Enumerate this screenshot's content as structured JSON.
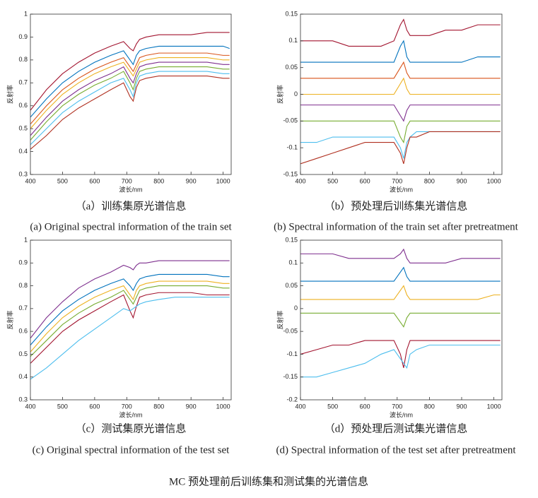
{
  "chart_data": [
    {
      "type": "line",
      "caption_cn": "（a）训练集原光谱信息",
      "caption_en": "(a) Original spectral information of the train set",
      "x_label": "波长/nm",
      "y_label": "反射率",
      "x": [
        400,
        450,
        500,
        550,
        600,
        650,
        690,
        710,
        720,
        730,
        740,
        760,
        800,
        850,
        900,
        950,
        1000,
        1020
      ],
      "xlim": [
        400,
        1025
      ],
      "xticks": [
        400,
        500,
        600,
        700,
        800,
        900,
        1000
      ],
      "ylim": [
        0.3,
        1
      ],
      "yticks": [
        0.3,
        0.4,
        0.5,
        0.6,
        0.7,
        0.8,
        0.9,
        1
      ],
      "series": [
        {
          "color": "#a2142f",
          "values": [
            0.58,
            0.67,
            0.74,
            0.79,
            0.83,
            0.86,
            0.88,
            0.85,
            0.84,
            0.87,
            0.89,
            0.9,
            0.91,
            0.91,
            0.91,
            0.92,
            0.92,
            0.92
          ]
        },
        {
          "color": "#0072bd",
          "values": [
            0.55,
            0.63,
            0.7,
            0.75,
            0.79,
            0.82,
            0.84,
            0.8,
            0.78,
            0.82,
            0.84,
            0.85,
            0.86,
            0.86,
            0.86,
            0.86,
            0.86,
            0.85
          ]
        },
        {
          "color": "#d95319",
          "values": [
            0.52,
            0.6,
            0.67,
            0.72,
            0.76,
            0.79,
            0.81,
            0.77,
            0.75,
            0.78,
            0.81,
            0.82,
            0.83,
            0.83,
            0.83,
            0.83,
            0.82,
            0.82
          ]
        },
        {
          "color": "#edb120",
          "values": [
            0.5,
            0.58,
            0.65,
            0.7,
            0.74,
            0.77,
            0.79,
            0.75,
            0.73,
            0.76,
            0.79,
            0.8,
            0.81,
            0.81,
            0.81,
            0.81,
            0.8,
            0.8
          ]
        },
        {
          "color": "#7e2f8e",
          "values": [
            0.47,
            0.55,
            0.62,
            0.67,
            0.71,
            0.74,
            0.77,
            0.72,
            0.7,
            0.74,
            0.77,
            0.78,
            0.79,
            0.79,
            0.79,
            0.79,
            0.78,
            0.78
          ]
        },
        {
          "color": "#77ac30",
          "values": [
            0.45,
            0.53,
            0.6,
            0.65,
            0.69,
            0.72,
            0.75,
            0.7,
            0.67,
            0.72,
            0.75,
            0.76,
            0.77,
            0.77,
            0.77,
            0.77,
            0.76,
            0.76
          ]
        },
        {
          "color": "#4dbeee",
          "values": [
            0.43,
            0.5,
            0.57,
            0.62,
            0.66,
            0.7,
            0.72,
            0.67,
            0.64,
            0.7,
            0.73,
            0.74,
            0.75,
            0.75,
            0.75,
            0.75,
            0.74,
            0.74
          ]
        },
        {
          "color": "#b03020",
          "values": [
            0.41,
            0.47,
            0.54,
            0.59,
            0.63,
            0.67,
            0.7,
            0.64,
            0.62,
            0.68,
            0.71,
            0.72,
            0.73,
            0.73,
            0.73,
            0.73,
            0.72,
            0.72
          ]
        }
      ]
    },
    {
      "type": "line",
      "caption_cn": "（b）预处理后训练集光谱信息",
      "caption_en": "(b) Spectral information of the train set after pretreatment",
      "x_label": "波长/nm",
      "y_label": "反射率",
      "x": [
        400,
        450,
        500,
        550,
        600,
        650,
        690,
        710,
        720,
        730,
        740,
        760,
        800,
        850,
        900,
        950,
        1000,
        1020
      ],
      "xlim": [
        400,
        1025
      ],
      "xticks": [
        400,
        500,
        600,
        700,
        800,
        900,
        1000
      ],
      "ylim": [
        -0.15,
        0.15
      ],
      "yticks": [
        -0.15,
        -0.1,
        -0.05,
        0,
        0.05,
        0.1,
        0.15
      ],
      "series": [
        {
          "color": "#a2142f",
          "values": [
            0.1,
            0.1,
            0.1,
            0.09,
            0.09,
            0.09,
            0.1,
            0.13,
            0.14,
            0.12,
            0.11,
            0.11,
            0.11,
            0.12,
            0.12,
            0.13,
            0.13,
            0.13
          ]
        },
        {
          "color": "#0072bd",
          "values": [
            0.06,
            0.06,
            0.06,
            0.06,
            0.06,
            0.06,
            0.06,
            0.09,
            0.1,
            0.07,
            0.06,
            0.06,
            0.06,
            0.06,
            0.06,
            0.07,
            0.07,
            0.07
          ]
        },
        {
          "color": "#d95319",
          "values": [
            0.03,
            0.03,
            0.03,
            0.03,
            0.03,
            0.03,
            0.03,
            0.05,
            0.06,
            0.04,
            0.03,
            0.03,
            0.03,
            0.03,
            0.03,
            0.03,
            0.03,
            0.03
          ]
        },
        {
          "color": "#edb120",
          "values": [
            0.0,
            0.0,
            0.0,
            0.0,
            0.0,
            0.0,
            0.0,
            0.02,
            0.03,
            0.01,
            0.0,
            0.0,
            0.0,
            0.0,
            0.0,
            0.0,
            0.0,
            0.0
          ]
        },
        {
          "color": "#7e2f8e",
          "values": [
            -0.02,
            -0.02,
            -0.02,
            -0.02,
            -0.02,
            -0.02,
            -0.02,
            -0.04,
            -0.05,
            -0.03,
            -0.02,
            -0.02,
            -0.02,
            -0.02,
            -0.02,
            -0.02,
            -0.02,
            -0.02
          ]
        },
        {
          "color": "#77ac30",
          "values": [
            -0.05,
            -0.05,
            -0.05,
            -0.05,
            -0.05,
            -0.05,
            -0.05,
            -0.08,
            -0.09,
            -0.06,
            -0.05,
            -0.05,
            -0.05,
            -0.05,
            -0.05,
            -0.05,
            -0.05,
            -0.05
          ]
        },
        {
          "color": "#4dbeee",
          "values": [
            -0.09,
            -0.09,
            -0.08,
            -0.08,
            -0.08,
            -0.08,
            -0.08,
            -0.1,
            -0.12,
            -0.09,
            -0.08,
            -0.07,
            -0.07,
            -0.07,
            -0.07,
            -0.07,
            -0.07,
            -0.07
          ]
        },
        {
          "color": "#b03020",
          "values": [
            -0.13,
            -0.12,
            -0.11,
            -0.1,
            -0.09,
            -0.09,
            -0.09,
            -0.11,
            -0.13,
            -0.1,
            -0.08,
            -0.08,
            -0.07,
            -0.07,
            -0.07,
            -0.07,
            -0.07,
            -0.07
          ]
        }
      ]
    },
    {
      "type": "line",
      "caption_cn": "（c）测试集原光谱信息",
      "caption_en": "(c) Original spectral information of the test set",
      "x_label": "波长/nm",
      "y_label": "反射率",
      "x": [
        400,
        450,
        500,
        550,
        600,
        650,
        690,
        710,
        720,
        730,
        740,
        760,
        800,
        850,
        900,
        950,
        1000,
        1020
      ],
      "xlim": [
        400,
        1025
      ],
      "xticks": [
        400,
        500,
        600,
        700,
        800,
        900,
        1000
      ],
      "ylim": [
        0.3,
        1
      ],
      "yticks": [
        0.3,
        0.4,
        0.5,
        0.6,
        0.7,
        0.8,
        0.9,
        1
      ],
      "series": [
        {
          "color": "#7e2f8e",
          "values": [
            0.57,
            0.66,
            0.73,
            0.79,
            0.83,
            0.86,
            0.89,
            0.88,
            0.87,
            0.89,
            0.9,
            0.9,
            0.91,
            0.91,
            0.91,
            0.91,
            0.91,
            0.91
          ]
        },
        {
          "color": "#0072bd",
          "values": [
            0.54,
            0.62,
            0.69,
            0.74,
            0.78,
            0.81,
            0.83,
            0.8,
            0.78,
            0.81,
            0.83,
            0.84,
            0.85,
            0.85,
            0.85,
            0.85,
            0.84,
            0.84
          ]
        },
        {
          "color": "#edb120",
          "values": [
            0.51,
            0.59,
            0.66,
            0.71,
            0.75,
            0.78,
            0.8,
            0.76,
            0.74,
            0.78,
            0.8,
            0.81,
            0.82,
            0.82,
            0.82,
            0.82,
            0.81,
            0.81
          ]
        },
        {
          "color": "#77ac30",
          "values": [
            0.49,
            0.56,
            0.63,
            0.68,
            0.72,
            0.75,
            0.78,
            0.74,
            0.72,
            0.75,
            0.78,
            0.79,
            0.8,
            0.8,
            0.8,
            0.8,
            0.79,
            0.79
          ]
        },
        {
          "color": "#a2142f",
          "values": [
            0.46,
            0.53,
            0.6,
            0.65,
            0.69,
            0.73,
            0.76,
            0.69,
            0.66,
            0.71,
            0.75,
            0.76,
            0.77,
            0.77,
            0.77,
            0.76,
            0.76,
            0.76
          ]
        },
        {
          "color": "#4dbeee",
          "values": [
            0.39,
            0.44,
            0.5,
            0.56,
            0.61,
            0.66,
            0.7,
            0.69,
            0.7,
            0.71,
            0.72,
            0.73,
            0.74,
            0.75,
            0.75,
            0.75,
            0.75,
            0.75
          ]
        }
      ]
    },
    {
      "type": "line",
      "caption_cn": "（d）预处理后测试集光谱信息",
      "caption_en": "(d) Spectral information of the test set after pretreatment",
      "x_label": "波长/nm",
      "y_label": "反射率",
      "x": [
        400,
        450,
        500,
        550,
        600,
        650,
        690,
        710,
        720,
        730,
        740,
        760,
        800,
        850,
        900,
        950,
        1000,
        1020
      ],
      "xlim": [
        400,
        1025
      ],
      "xticks": [
        400,
        500,
        600,
        700,
        800,
        900,
        1000
      ],
      "ylim": [
        -0.2,
        0.15
      ],
      "yticks": [
        -0.2,
        -0.15,
        -0.1,
        -0.05,
        0,
        0.05,
        0.1,
        0.15
      ],
      "series": [
        {
          "color": "#7e2f8e",
          "values": [
            0.12,
            0.12,
            0.12,
            0.11,
            0.11,
            0.11,
            0.11,
            0.12,
            0.13,
            0.11,
            0.1,
            0.1,
            0.1,
            0.1,
            0.11,
            0.11,
            0.11,
            0.11
          ]
        },
        {
          "color": "#0072bd",
          "values": [
            0.06,
            0.06,
            0.06,
            0.06,
            0.06,
            0.06,
            0.06,
            0.08,
            0.09,
            0.07,
            0.06,
            0.06,
            0.06,
            0.06,
            0.06,
            0.06,
            0.06,
            0.06
          ]
        },
        {
          "color": "#edb120",
          "values": [
            0.02,
            0.02,
            0.02,
            0.02,
            0.02,
            0.02,
            0.02,
            0.04,
            0.05,
            0.03,
            0.02,
            0.02,
            0.02,
            0.02,
            0.02,
            0.02,
            0.03,
            0.03
          ]
        },
        {
          "color": "#77ac30",
          "values": [
            -0.01,
            -0.01,
            -0.01,
            -0.01,
            -0.01,
            -0.01,
            -0.01,
            -0.03,
            -0.04,
            -0.02,
            -0.01,
            -0.01,
            -0.01,
            -0.01,
            -0.01,
            -0.01,
            -0.01,
            -0.01
          ]
        },
        {
          "color": "#a2142f",
          "values": [
            -0.1,
            -0.09,
            -0.08,
            -0.08,
            -0.07,
            -0.07,
            -0.07,
            -0.1,
            -0.13,
            -0.09,
            -0.07,
            -0.07,
            -0.07,
            -0.07,
            -0.07,
            -0.07,
            -0.07,
            -0.07
          ]
        },
        {
          "color": "#4dbeee",
          "values": [
            -0.15,
            -0.15,
            -0.14,
            -0.13,
            -0.12,
            -0.1,
            -0.09,
            -0.11,
            -0.12,
            -0.13,
            -0.1,
            -0.09,
            -0.08,
            -0.08,
            -0.08,
            -0.08,
            -0.08,
            -0.08
          ]
        }
      ]
    }
  ],
  "figure_caption": "MC 预处理前后训练集和测试集的光谱信息"
}
